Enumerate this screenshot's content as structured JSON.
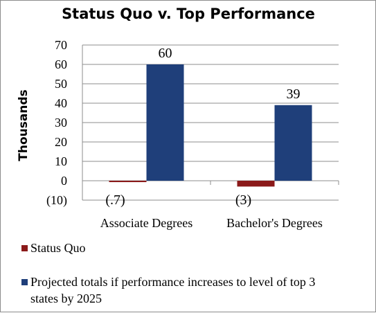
{
  "chart_data": {
    "type": "bar",
    "title": "Status Quo v. Top Performance",
    "ylabel": "Thousands",
    "xlabel": "",
    "categories": [
      "Associate Degrees",
      "Bachelor's Degrees"
    ],
    "series": [
      {
        "name": "Status Quo",
        "values": [
          -0.7,
          -3
        ],
        "labels": [
          "(.7)",
          "(3)"
        ],
        "color": "#8b1a1a"
      },
      {
        "name": "Projected totals if performance increases to level of top 3 states by 2025",
        "values": [
          60,
          39
        ],
        "labels": [
          "60",
          "39"
        ],
        "color": "#1f3f7a"
      }
    ],
    "ylim": [
      -10,
      70
    ],
    "yticks": [
      70,
      60,
      50,
      40,
      30,
      20,
      10,
      0,
      -10
    ],
    "ytick_labels": [
      "70",
      "60",
      "50",
      "40",
      "30",
      "20",
      "10",
      "0",
      "(10)"
    ],
    "grid": true,
    "legend_position": "bottom"
  }
}
